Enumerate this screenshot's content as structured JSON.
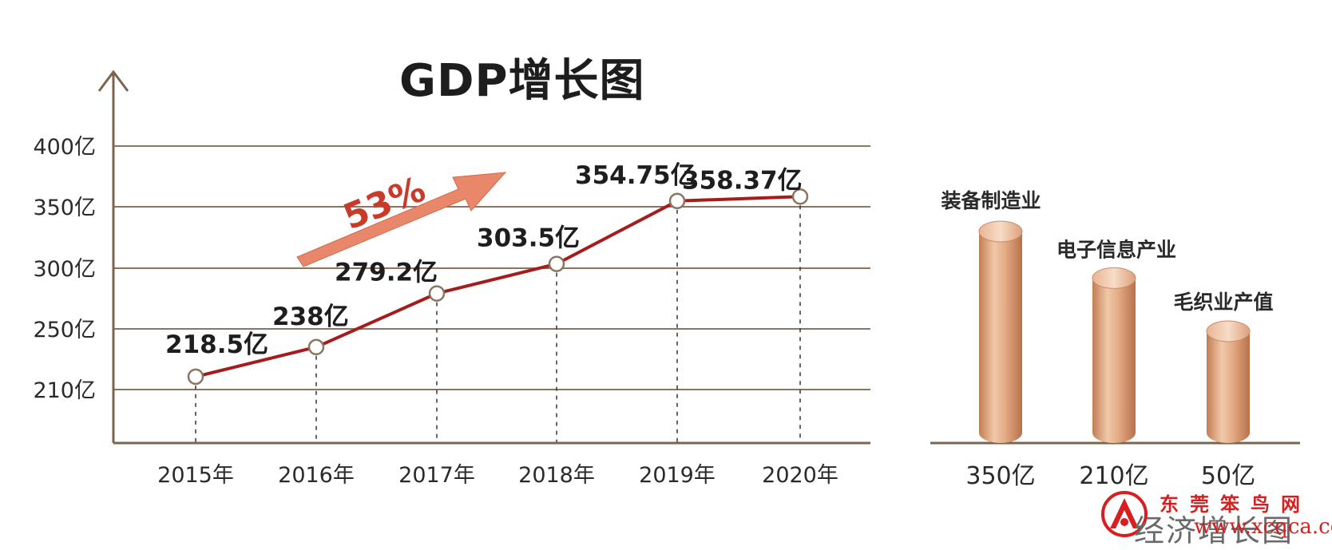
{
  "chart_data": [
    {
      "type": "line",
      "title": "GDP增长图",
      "categories": [
        "2015年",
        "2016年",
        "2017年",
        "2018年",
        "2019年",
        "2020年"
      ],
      "values": [
        218.5,
        238,
        279.2,
        303.5,
        354.75,
        358.37
      ],
      "data_labels": [
        "218.5亿",
        "238亿",
        "279.2亿",
        "303.5亿",
        "354.75亿",
        "358.37亿"
      ],
      "y_ticks": [
        {
          "value": 210,
          "label": "210亿"
        },
        {
          "value": 250,
          "label": "250亿"
        },
        {
          "value": 300,
          "label": "300亿"
        },
        {
          "value": 350,
          "label": "350亿"
        },
        {
          "value": 400,
          "label": "400亿"
        }
      ],
      "growth_annotation": "53%",
      "colors": {
        "line": "#a51c1c",
        "grid": "#8b7560",
        "axis": "#7a6550",
        "arrow": "#e8876a"
      }
    },
    {
      "type": "bar",
      "style": "cylinder",
      "categories": [
        "装备制造业",
        "电子信息产业",
        "毛织业产值"
      ],
      "values": [
        350,
        210,
        50
      ],
      "value_labels": [
        "350亿",
        "210亿",
        "50亿"
      ],
      "colors": {
        "bar": "#d9a07a",
        "bar_light": "#f3d3bb",
        "bar_dark": "#c17f55"
      }
    }
  ],
  "watermark": {
    "site_name": "东莞笨鸟网",
    "subtitle": "经济增长图",
    "url": "www.xcqca.com"
  }
}
